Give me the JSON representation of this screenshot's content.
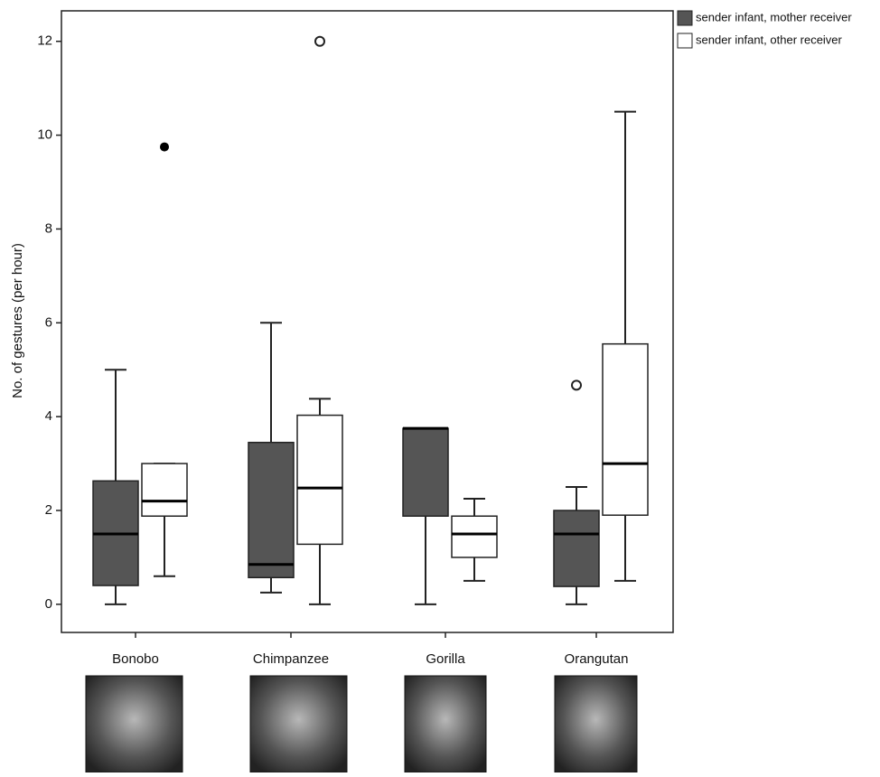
{
  "chart_data": {
    "type": "box",
    "y_label": "No. of gestures (per hour)",
    "categories": [
      "Bonobo",
      "Chimpanzee",
      "Gorilla",
      "Orangutan"
    ],
    "ylim": [
      -0.6,
      12.65
    ],
    "yticks": [
      0,
      2,
      4,
      6,
      8,
      10,
      12
    ],
    "legend": "top-right",
    "series": [
      {
        "name": "sender infant, mother receiver",
        "color": "#555555",
        "values": [
          {
            "min": 0,
            "q1": 0.4,
            "median": 1.5,
            "q3": 2.63,
            "max": 5
          },
          {
            "min": 0.25,
            "q1": 0.57,
            "median": 0.85,
            "q3": 3.45,
            "max": 6
          },
          {
            "min": 0,
            "q1": 1.88,
            "median": 3.75,
            "q3": 3.75,
            "max": 3.75
          },
          {
            "min": 0,
            "q1": 0.38,
            "median": 1.5,
            "q3": 2.0,
            "max": 2.5
          }
        ],
        "outliers": [
          [],
          [],
          [],
          [
            4.67
          ]
        ],
        "extremes": [
          [],
          [],
          [],
          []
        ]
      },
      {
        "name": "sender infant, other receiver",
        "color": "#ffffff",
        "values": [
          {
            "min": 0.6,
            "q1": 1.88,
            "median": 2.2,
            "q3": 3.0,
            "max": 3.0
          },
          {
            "min": 0,
            "q1": 1.28,
            "median": 2.48,
            "q3": 4.03,
            "max": 4.38
          },
          {
            "min": 0.5,
            "q1": 1.0,
            "median": 1.5,
            "q3": 1.88,
            "max": 2.25
          },
          {
            "min": 0.5,
            "q1": 1.9,
            "median": 3.0,
            "q3": 5.55,
            "max": 10.5
          }
        ],
        "outliers": [
          [],
          [
            12
          ],
          [],
          []
        ],
        "extremes": [
          [
            9.75
          ],
          [],
          [],
          []
        ]
      }
    ]
  }
}
